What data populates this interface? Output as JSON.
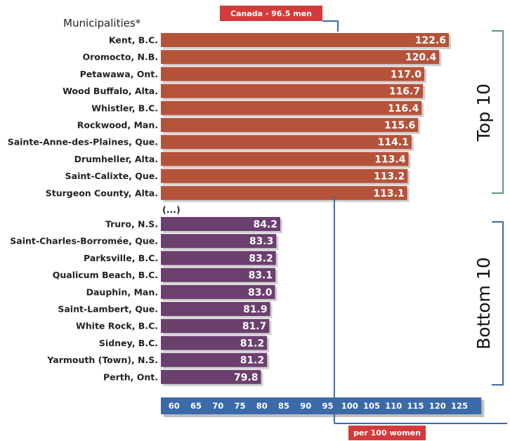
{
  "chart_data": {
    "type": "bar",
    "orientation": "horizontal",
    "column_header": "Municipalities*",
    "gap_label": "(...)",
    "reference": {
      "label": "Canada - 96.5 men",
      "value": 96.5
    },
    "unit_label": "per 100 women",
    "xlim": [
      57,
      130
    ],
    "x_ticks": [
      60,
      65,
      70,
      75,
      80,
      85,
      90,
      95,
      100,
      105,
      110,
      115,
      120,
      125
    ],
    "colors": {
      "top": "#b5533a",
      "bottom": "#6b3f6e",
      "axis": "#3a6aa8",
      "reference": "#d53a3a",
      "bracket_top": "#5a9a6e",
      "bracket_bottom": "#3a6aa8"
    },
    "groups": [
      {
        "name": "Top 10",
        "categories": [
          "Kent, B.C.",
          "Oromocto, N.B.",
          "Petawawa, Ont.",
          "Wood Buffalo, Alta.",
          "Whistler, B.C.",
          "Rockwood, Man.",
          "Sainte-Anne-des-Plaines, Que.",
          "Drumheller, Alta.",
          "Saint-Calixte, Que.",
          "Sturgeon County, Alta."
        ],
        "values": [
          122.6,
          120.4,
          117.0,
          116.7,
          116.4,
          115.6,
          114.1,
          113.4,
          113.2,
          113.1
        ],
        "value_labels": [
          "122.6",
          "120.4",
          "117.0",
          "116.7",
          "116.4",
          "115.6",
          "114.1",
          "113.4",
          "113.2",
          "113.1"
        ]
      },
      {
        "name": "Bottom 10",
        "categories": [
          "Truro, N.S.",
          "Saint-Charles-Borromée, Que.",
          "Parksville, B.C.",
          "Qualicum Beach, B.C.",
          "Dauphin, Man.",
          "Saint-Lambert, Que.",
          "White Rock, B.C.",
          "Sidney, B.C.",
          "Yarmouth (Town), N.S.",
          "Perth, Ont."
        ],
        "values": [
          84.2,
          83.3,
          83.2,
          83.1,
          83.0,
          81.9,
          81.7,
          81.2,
          81.2,
          79.8
        ],
        "value_labels": [
          "84.2",
          "83.3",
          "83.2",
          "83.1",
          "83.0",
          "81.9",
          "81.7",
          "81.2",
          "81.2",
          "79.8"
        ]
      }
    ]
  }
}
